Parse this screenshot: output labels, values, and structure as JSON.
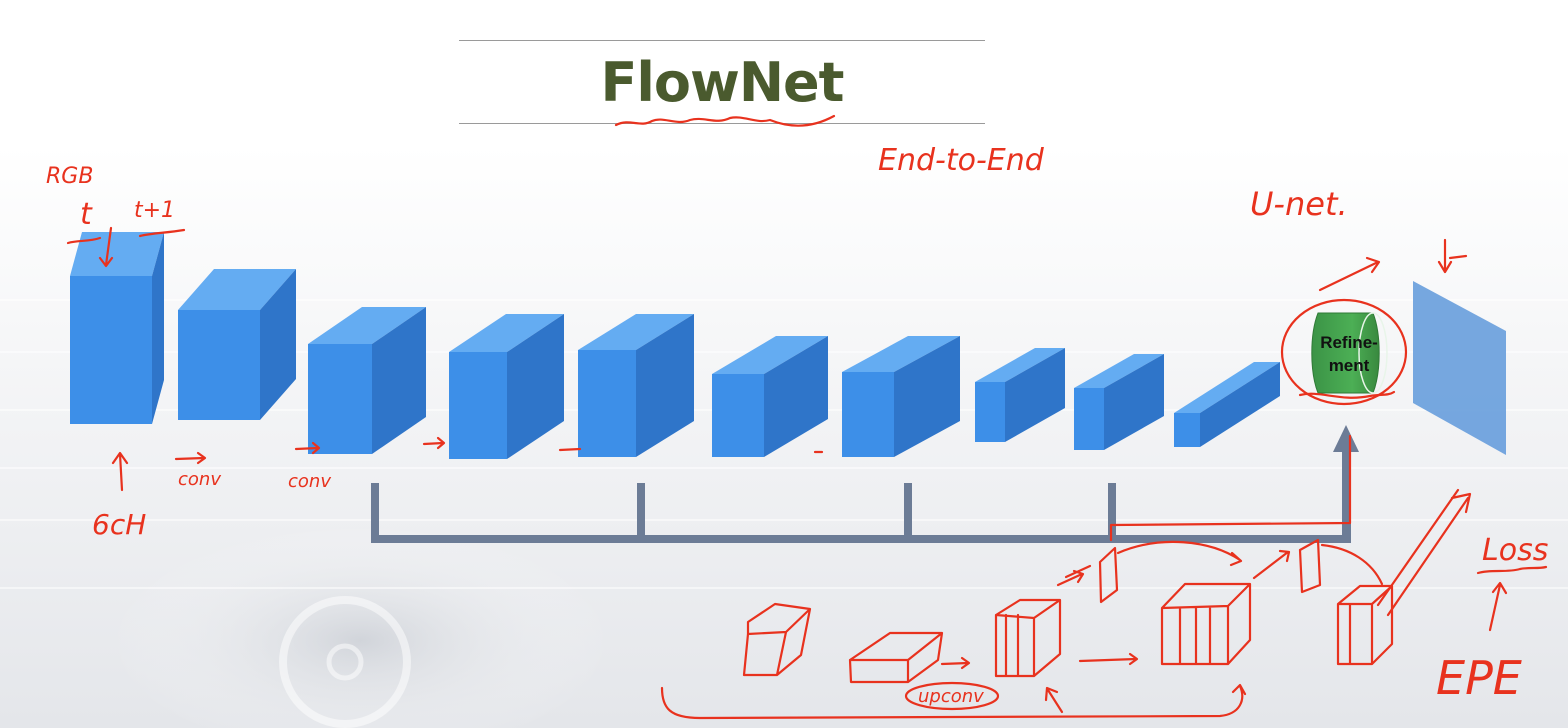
{
  "slide": {
    "title": "FlowNet",
    "title_color": "#4a5a2e"
  },
  "diagram": {
    "refinement_label_line1": "Refine-",
    "refinement_label_line2": "ment",
    "colors": {
      "block_front": "#3d8fe8",
      "block_top": "#64acf2",
      "block_side": "#2f75c9",
      "refinement_fill": "#46a34f",
      "output_fill": "#6a9fdc",
      "connector": "#6c7c96",
      "annotation_ink": "#e8321e"
    }
  },
  "annotations": {
    "input_format": "RGB",
    "frame_t": "t",
    "frame_t1": "t+1",
    "channels": "6cH",
    "op_conv_1": "conv",
    "op_conv_2": "conv",
    "end_to_end": "End-to-End",
    "unet": "U-net.",
    "upconv": "upconv",
    "loss": "Loss",
    "epe": "EPE"
  }
}
